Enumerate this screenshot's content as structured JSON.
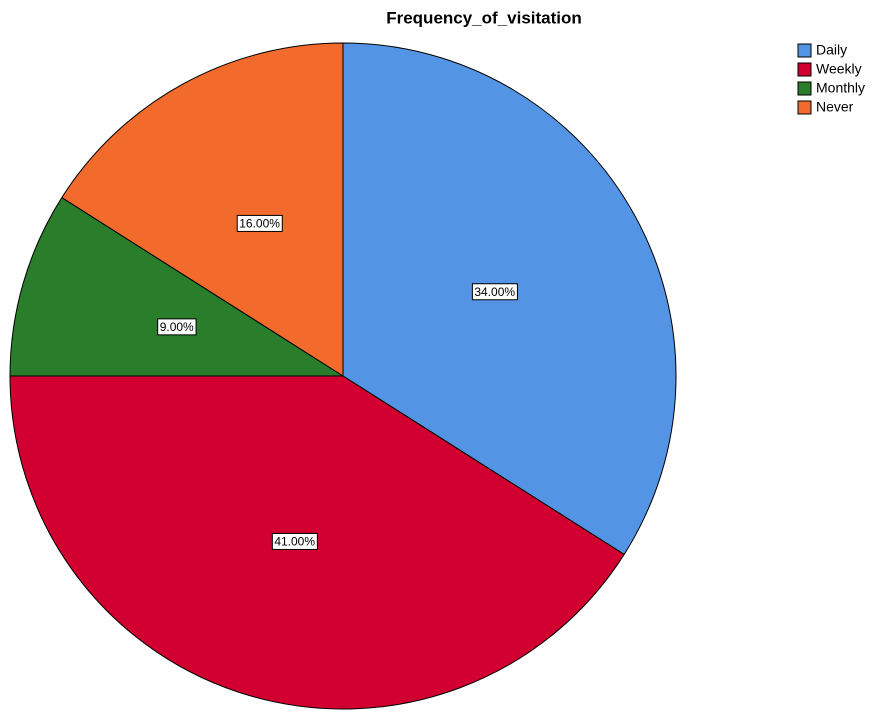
{
  "chart_data": {
    "type": "pie",
    "title": "Frequency_of_visitation",
    "categories": [
      "Daily",
      "Weekly",
      "Monthly",
      "Never"
    ],
    "values": [
      34,
      41,
      9,
      16
    ],
    "value_labels": [
      "34.00%",
      "41.00%",
      "9.00%",
      "16.00%"
    ],
    "colors": [
      "#5494e4",
      "#d20030",
      "#2a7d2a",
      "#f26a2c"
    ],
    "legend": "upper right"
  }
}
